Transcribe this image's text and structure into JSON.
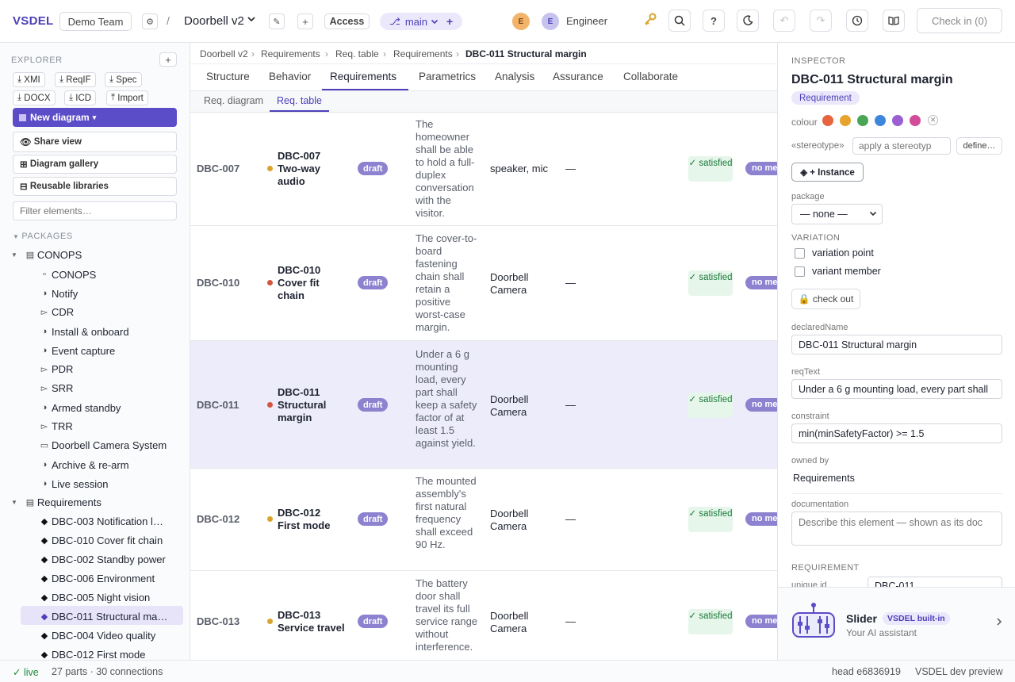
{
  "app": {
    "logo": "VSDEL",
    "team": "Demo Team",
    "separator": "/",
    "project": "Doorbell v2",
    "access_label": "Access",
    "branch": "main",
    "avatar_initial": "E",
    "user_initial": "E",
    "user_role": "Engineer",
    "checkin_label": "Check in (0)"
  },
  "sidebar": {
    "explorer_label": "EXPLORER",
    "export_buttons": [
      "XMI",
      "ReqIF",
      "Spec",
      "DOCX",
      "ICD",
      "Import"
    ],
    "new_diagram_label": "New diagram",
    "share_view_label": "Share view",
    "gallery_label": "Diagram gallery",
    "libraries_label": "Reusable libraries",
    "filter_placeholder": "Filter elements…",
    "packages_label": "PACKAGES",
    "conops": {
      "label": "CONOPS",
      "children": [
        "CONOPS",
        "Notify",
        "CDR",
        "Install & onboard",
        "Event capture",
        "PDR",
        "SRR",
        "Armed standby",
        "TRR",
        "Doorbell Camera System",
        "Archive & re-arm",
        "Live session"
      ]
    },
    "requirements": {
      "label": "Requirements",
      "children": [
        "DBC-003 Notification l…",
        "DBC-010 Cover fit chain",
        "DBC-002 Standby power",
        "DBC-006 Environment",
        "DBC-005 Night vision",
        "DBC-011 Structural ma…",
        "DBC-004 Video quality",
        "DBC-012 First mode"
      ]
    }
  },
  "main": {
    "breadcrumb": [
      "Doorbell v2",
      "Requirements",
      "Req. table",
      "Requirements",
      "DBC-011 Structural margin"
    ],
    "tabs": [
      "Structure",
      "Behavior",
      "Requirements",
      "Parametrics",
      "Analysis",
      "Assurance",
      "Collaborate"
    ],
    "subtabs": [
      "Req. diagram",
      "Req. table"
    ],
    "rows": [
      {
        "id": "DBC-007",
        "name": "DBC-007 Two-way audio",
        "status": "draft",
        "text": "The homeowner shall be able to hold a full-duplex conversation with the visitor.",
        "satisfied_by": "speaker, mic",
        "verified": "—",
        "sat": "✓ satisfied",
        "ver": "no me",
        "dot": "#d9a32c"
      },
      {
        "id": "DBC-010",
        "name": "DBC-010 Cover fit chain",
        "status": "draft",
        "text": "The cover-to-board fastening chain shall retain a positive worst-case margin.",
        "satisfied_by": "Doorbell Camera",
        "verified": "—",
        "sat": "✓ satisfied",
        "ver": "no me",
        "dot": "#d4553e"
      },
      {
        "id": "DBC-011",
        "name": "DBC-011 Structural margin",
        "status": "draft",
        "text": "Under a 6 g mounting load, every part shall keep a safety factor of at least 1.5 against yield.",
        "satisfied_by": "Doorbell Camera",
        "verified": "—",
        "sat": "✓ satisfied",
        "ver": "no me",
        "dot": "#d4553e"
      },
      {
        "id": "DBC-012",
        "name": "DBC-012 First mode",
        "status": "draft",
        "text": "The mounted assembly's first natural frequency shall exceed 90 Hz.",
        "satisfied_by": "Doorbell Camera",
        "verified": "—",
        "sat": "✓ satisfied",
        "ver": "no me",
        "dot": "#d9a32c"
      },
      {
        "id": "DBC-013",
        "name": "DBC-013 Service travel",
        "status": "draft",
        "text": "The battery door shall travel its full service range without interference.",
        "satisfied_by": "Doorbell Camera",
        "verified": "—",
        "sat": "✓ satisfied",
        "ver": "no me",
        "dot": "#d9a32c"
      }
    ]
  },
  "inspector": {
    "section_label": "INSPECTOR",
    "title": "DBC-011 Structural margin",
    "kind_badge": "Requirement",
    "colour_label": "colour",
    "colours": [
      "#e8643f",
      "#e6a42c",
      "#4aa655",
      "#3d86db",
      "#9a5fd2",
      "#d24c9a"
    ],
    "stereotype_label": "«stereotype»",
    "stereotype_placeholder": "apply a stereotyp",
    "define_label": "define…",
    "instance_label": "◈ + Instance",
    "package_label": "package",
    "package_value": "— none —",
    "variation_label": "VARIATION",
    "variation_point": "variation point",
    "variant_member": "variant member",
    "checkout_label": "🔒 check out",
    "declaredName_label": "declaredName",
    "declaredName": "DBC-011 Structural margin",
    "reqText_label": "reqText",
    "reqText": "Under a 6 g mounting load, every part shall",
    "constraint_label": "constraint",
    "constraint": "min(minSafetyFactor) >= 1.5",
    "owned_by_label": "owned by",
    "owned_by": "Requirements",
    "documentation_label": "documentation",
    "documentation_placeholder": "Describe this element — shown as its doc",
    "requirement_label": "REQUIREMENT",
    "unique_id_label": "unique id",
    "unique_id": "DBC-011"
  },
  "assistant": {
    "name": "Slider",
    "badge": "VSDEL built-in",
    "subtitle": "Your AI assistant"
  },
  "footer": {
    "live": "✓ live",
    "stats": "27 parts · 30 connections",
    "head": "head e6836919",
    "env": "VSDEL dev preview"
  }
}
